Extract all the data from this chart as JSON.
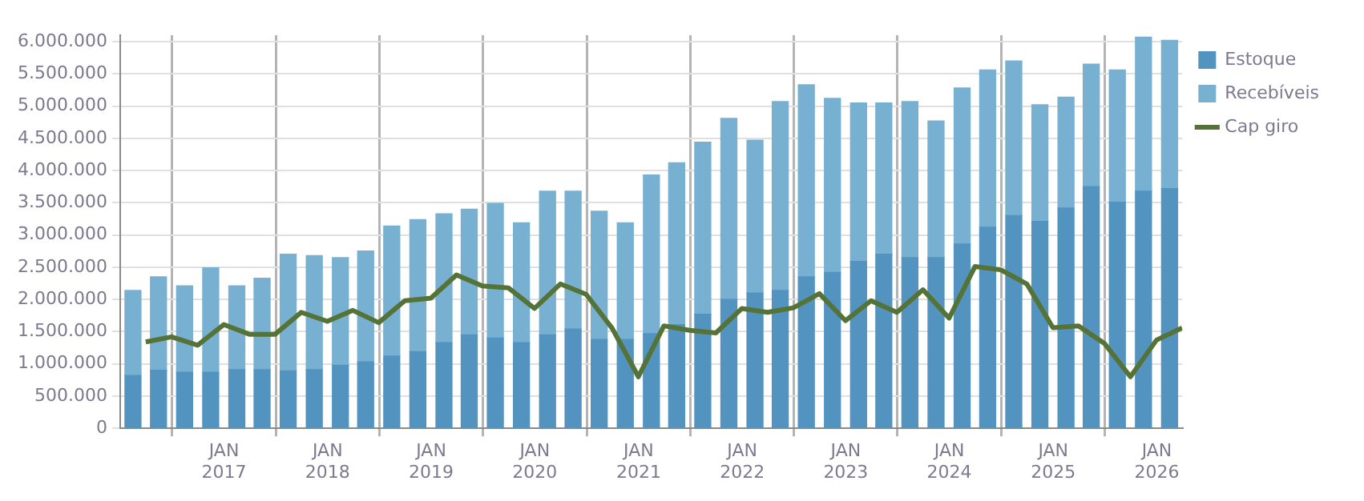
{
  "chart_data": {
    "type": "bar",
    "stacked": true,
    "x": [
      "2016-02-15",
      "2016-05-15",
      "2016-08-15",
      "2016-11-15",
      "2017-02-15",
      "2017-05-15",
      "2017-08-15",
      "2017-11-15",
      "2018-02-15",
      "2018-05-15",
      "2018-08-15",
      "2018-11-15",
      "2019-02-15",
      "2019-05-15",
      "2019-08-15",
      "2019-11-15",
      "2020-02-15",
      "2020-05-15",
      "2020-08-15",
      "2020-11-15",
      "2021-02-15",
      "2021-05-15",
      "2021-08-15",
      "2021-11-15",
      "2022-02-15",
      "2022-05-15",
      "2022-08-15",
      "2022-11-15",
      "2023-02-15",
      "2023-05-15",
      "2023-08-15",
      "2023-11-15",
      "2024-02-15",
      "2024-05-15",
      "2024-08-15",
      "2024-11-15",
      "2025-02-15",
      "2025-05-15",
      "2025-08-15",
      "2025-11-15",
      "2026-02-15"
    ],
    "series": [
      {
        "name": "Estoque",
        "color": "#5393c0",
        "values": [
          820000,
          900000,
          870000,
          870000,
          910000,
          910000,
          890000,
          910000,
          980000,
          1030000,
          1120000,
          1190000,
          1330000,
          1450000,
          1400000,
          1330000,
          1450000,
          1540000,
          1380000,
          1380000,
          1470000,
          1610000,
          1770000,
          2000000,
          2100000,
          2140000,
          2350000,
          2420000,
          2590000,
          2700000,
          2650000,
          2650000,
          2860000,
          3120000,
          3300000,
          3210000,
          3420000,
          3750000,
          3510000,
          3680000,
          3720000
        ]
      },
      {
        "name": "Recebíveis",
        "color": "#78b0d2",
        "values": [
          1320000,
          1450000,
          1340000,
          1620000,
          1300000,
          1420000,
          1810000,
          1770000,
          1670000,
          1720000,
          2020000,
          2050000,
          2000000,
          1950000,
          2090000,
          1860000,
          2230000,
          2140000,
          1990000,
          1810000,
          2460000,
          2510000,
          2670000,
          2810000,
          2370000,
          2930000,
          2980000,
          2700000,
          2460000,
          2350000,
          2420000,
          2120000,
          2420000,
          2440000,
          2400000,
          1810000,
          1720000,
          1900000,
          2050000,
          2390000,
          2300000
        ]
      },
      {
        "name": "Cap giro",
        "type": "line",
        "color": "#557336",
        "x": [
          "2016-03-31",
          "2016-06-30",
          "2016-09-30",
          "2016-12-31",
          "2017-03-31",
          "2017-06-30",
          "2017-09-30",
          "2017-12-31",
          "2018-03-31",
          "2018-06-30",
          "2018-09-30",
          "2018-12-31",
          "2019-03-31",
          "2019-06-30",
          "2019-09-30",
          "2019-12-31",
          "2020-03-31",
          "2020-06-30",
          "2020-09-30",
          "2020-12-31",
          "2021-03-31",
          "2021-06-30",
          "2021-09-30",
          "2021-12-31",
          "2022-03-31",
          "2022-06-30",
          "2022-09-30",
          "2022-12-31",
          "2023-03-31",
          "2023-06-30",
          "2023-09-30",
          "2023-12-31",
          "2024-03-31",
          "2024-06-30",
          "2024-09-30",
          "2024-12-31",
          "2025-03-31",
          "2025-06-30",
          "2025-09-30",
          "2025-12-31",
          "2026-03-31"
        ],
        "values": [
          1340000,
          1420000,
          1290000,
          1610000,
          1460000,
          1460000,
          1800000,
          1660000,
          1830000,
          1640000,
          1980000,
          2020000,
          2380000,
          2210000,
          2180000,
          1860000,
          2240000,
          2080000,
          1550000,
          800000,
          1590000,
          1520000,
          1480000,
          1860000,
          1800000,
          1870000,
          2090000,
          1670000,
          1980000,
          1800000,
          2150000,
          1710000,
          2510000,
          2460000,
          2240000,
          1560000,
          1590000,
          1320000,
          800000,
          1370000,
          1560000
        ]
      }
    ],
    "xlim": [
      "2016-01",
      "2026-04"
    ],
    "xticks": [
      {
        "value": "2017-01",
        "label": "JAN 2017"
      },
      {
        "value": "2018-01",
        "label": "JAN 2018"
      },
      {
        "value": "2019-01",
        "label": "JAN 2019"
      },
      {
        "value": "2020-01",
        "label": "JAN 2020"
      },
      {
        "value": "2021-01",
        "label": "JAN 2021"
      },
      {
        "value": "2022-01",
        "label": "JAN 2022"
      },
      {
        "value": "2023-01",
        "label": "JAN 2023"
      },
      {
        "value": "2024-01",
        "label": "JAN 2024"
      },
      {
        "value": "2025-01",
        "label": "JAN 2025"
      },
      {
        "value": "2026-01",
        "label": "JAN 2026"
      }
    ],
    "ylim": [
      0,
      6100000
    ],
    "yticks": [
      0,
      {
        "value": 500000,
        "label": "500.000"
      },
      {
        "value": 1000000,
        "label": "1.000.000"
      },
      {
        "value": 1500000,
        "label": "1.500.000"
      },
      {
        "value": 2000000,
        "label": "2.000.000"
      },
      {
        "value": 2500000,
        "label": "2.500.000"
      },
      {
        "value": 3000000,
        "label": "3.000.000"
      },
      {
        "value": 3500000,
        "label": "3.500.000"
      },
      {
        "value": 4000000,
        "label": "4.000.000"
      },
      {
        "value": 4500000,
        "label": "4.500.000"
      },
      {
        "value": 5000000,
        "label": "5.000.000"
      },
      {
        "value": 5500000,
        "label": "5.500.000"
      },
      {
        "value": 6000000,
        "label": "6.000.000"
      }
    ],
    "grid": true,
    "legend": "top right",
    "marker": "none",
    "line_style": "solid"
  }
}
